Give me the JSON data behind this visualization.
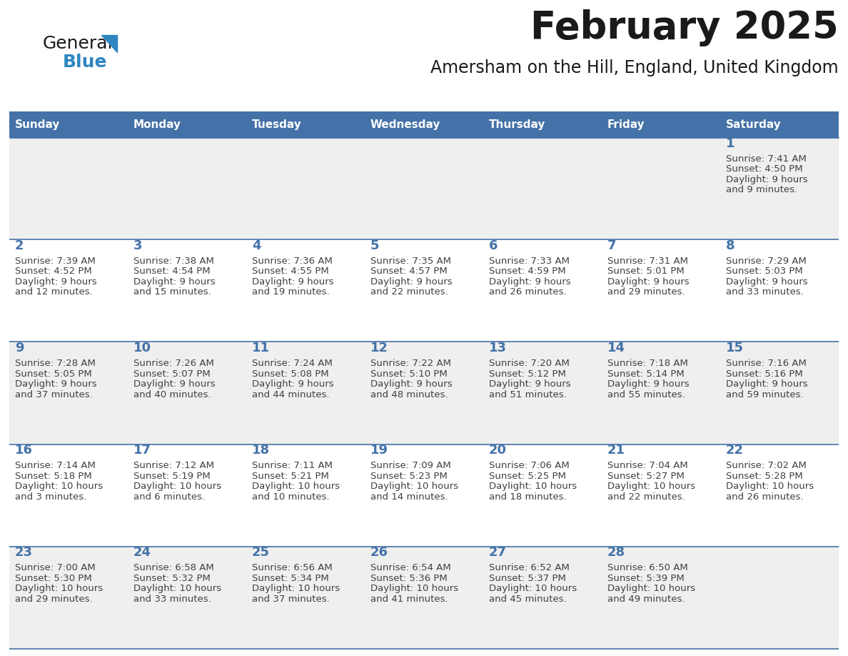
{
  "title": "February 2025",
  "subtitle": "Amersham on the Hill, England, United Kingdom",
  "days_of_week": [
    "Sunday",
    "Monday",
    "Tuesday",
    "Wednesday",
    "Thursday",
    "Friday",
    "Saturday"
  ],
  "header_bg": "#4472A8",
  "header_text": "#FFFFFF",
  "row_bg_even": "#EFEFEF",
  "row_bg_odd": "#FFFFFF",
  "day_number_color": "#4472A8",
  "text_color": "#404040",
  "line_color": "#4472A8",
  "cal_data": [
    {
      "day": 1,
      "col": 6,
      "row": 0,
      "sunrise": "7:41 AM",
      "sunset": "4:50 PM",
      "daylight_line1": "Daylight: 9 hours",
      "daylight_line2": "and 9 minutes."
    },
    {
      "day": 2,
      "col": 0,
      "row": 1,
      "sunrise": "7:39 AM",
      "sunset": "4:52 PM",
      "daylight_line1": "Daylight: 9 hours",
      "daylight_line2": "and 12 minutes."
    },
    {
      "day": 3,
      "col": 1,
      "row": 1,
      "sunrise": "7:38 AM",
      "sunset": "4:54 PM",
      "daylight_line1": "Daylight: 9 hours",
      "daylight_line2": "and 15 minutes."
    },
    {
      "day": 4,
      "col": 2,
      "row": 1,
      "sunrise": "7:36 AM",
      "sunset": "4:55 PM",
      "daylight_line1": "Daylight: 9 hours",
      "daylight_line2": "and 19 minutes."
    },
    {
      "day": 5,
      "col": 3,
      "row": 1,
      "sunrise": "7:35 AM",
      "sunset": "4:57 PM",
      "daylight_line1": "Daylight: 9 hours",
      "daylight_line2": "and 22 minutes."
    },
    {
      "day": 6,
      "col": 4,
      "row": 1,
      "sunrise": "7:33 AM",
      "sunset": "4:59 PM",
      "daylight_line1": "Daylight: 9 hours",
      "daylight_line2": "and 26 minutes."
    },
    {
      "day": 7,
      "col": 5,
      "row": 1,
      "sunrise": "7:31 AM",
      "sunset": "5:01 PM",
      "daylight_line1": "Daylight: 9 hours",
      "daylight_line2": "and 29 minutes."
    },
    {
      "day": 8,
      "col": 6,
      "row": 1,
      "sunrise": "7:29 AM",
      "sunset": "5:03 PM",
      "daylight_line1": "Daylight: 9 hours",
      "daylight_line2": "and 33 minutes."
    },
    {
      "day": 9,
      "col": 0,
      "row": 2,
      "sunrise": "7:28 AM",
      "sunset": "5:05 PM",
      "daylight_line1": "Daylight: 9 hours",
      "daylight_line2": "and 37 minutes."
    },
    {
      "day": 10,
      "col": 1,
      "row": 2,
      "sunrise": "7:26 AM",
      "sunset": "5:07 PM",
      "daylight_line1": "Daylight: 9 hours",
      "daylight_line2": "and 40 minutes."
    },
    {
      "day": 11,
      "col": 2,
      "row": 2,
      "sunrise": "7:24 AM",
      "sunset": "5:08 PM",
      "daylight_line1": "Daylight: 9 hours",
      "daylight_line2": "and 44 minutes."
    },
    {
      "day": 12,
      "col": 3,
      "row": 2,
      "sunrise": "7:22 AM",
      "sunset": "5:10 PM",
      "daylight_line1": "Daylight: 9 hours",
      "daylight_line2": "and 48 minutes."
    },
    {
      "day": 13,
      "col": 4,
      "row": 2,
      "sunrise": "7:20 AM",
      "sunset": "5:12 PM",
      "daylight_line1": "Daylight: 9 hours",
      "daylight_line2": "and 51 minutes."
    },
    {
      "day": 14,
      "col": 5,
      "row": 2,
      "sunrise": "7:18 AM",
      "sunset": "5:14 PM",
      "daylight_line1": "Daylight: 9 hours",
      "daylight_line2": "and 55 minutes."
    },
    {
      "day": 15,
      "col": 6,
      "row": 2,
      "sunrise": "7:16 AM",
      "sunset": "5:16 PM",
      "daylight_line1": "Daylight: 9 hours",
      "daylight_line2": "and 59 minutes."
    },
    {
      "day": 16,
      "col": 0,
      "row": 3,
      "sunrise": "7:14 AM",
      "sunset": "5:18 PM",
      "daylight_line1": "Daylight: 10 hours",
      "daylight_line2": "and 3 minutes."
    },
    {
      "day": 17,
      "col": 1,
      "row": 3,
      "sunrise": "7:12 AM",
      "sunset": "5:19 PM",
      "daylight_line1": "Daylight: 10 hours",
      "daylight_line2": "and 6 minutes."
    },
    {
      "day": 18,
      "col": 2,
      "row": 3,
      "sunrise": "7:11 AM",
      "sunset": "5:21 PM",
      "daylight_line1": "Daylight: 10 hours",
      "daylight_line2": "and 10 minutes."
    },
    {
      "day": 19,
      "col": 3,
      "row": 3,
      "sunrise": "7:09 AM",
      "sunset": "5:23 PM",
      "daylight_line1": "Daylight: 10 hours",
      "daylight_line2": "and 14 minutes."
    },
    {
      "day": 20,
      "col": 4,
      "row": 3,
      "sunrise": "7:06 AM",
      "sunset": "5:25 PM",
      "daylight_line1": "Daylight: 10 hours",
      "daylight_line2": "and 18 minutes."
    },
    {
      "day": 21,
      "col": 5,
      "row": 3,
      "sunrise": "7:04 AM",
      "sunset": "5:27 PM",
      "daylight_line1": "Daylight: 10 hours",
      "daylight_line2": "and 22 minutes."
    },
    {
      "day": 22,
      "col": 6,
      "row": 3,
      "sunrise": "7:02 AM",
      "sunset": "5:28 PM",
      "daylight_line1": "Daylight: 10 hours",
      "daylight_line2": "and 26 minutes."
    },
    {
      "day": 23,
      "col": 0,
      "row": 4,
      "sunrise": "7:00 AM",
      "sunset": "5:30 PM",
      "daylight_line1": "Daylight: 10 hours",
      "daylight_line2": "and 29 minutes."
    },
    {
      "day": 24,
      "col": 1,
      "row": 4,
      "sunrise": "6:58 AM",
      "sunset": "5:32 PM",
      "daylight_line1": "Daylight: 10 hours",
      "daylight_line2": "and 33 minutes."
    },
    {
      "day": 25,
      "col": 2,
      "row": 4,
      "sunrise": "6:56 AM",
      "sunset": "5:34 PM",
      "daylight_line1": "Daylight: 10 hours",
      "daylight_line2": "and 37 minutes."
    },
    {
      "day": 26,
      "col": 3,
      "row": 4,
      "sunrise": "6:54 AM",
      "sunset": "5:36 PM",
      "daylight_line1": "Daylight: 10 hours",
      "daylight_line2": "and 41 minutes."
    },
    {
      "day": 27,
      "col": 4,
      "row": 4,
      "sunrise": "6:52 AM",
      "sunset": "5:37 PM",
      "daylight_line1": "Daylight: 10 hours",
      "daylight_line2": "and 45 minutes."
    },
    {
      "day": 28,
      "col": 5,
      "row": 4,
      "sunrise": "6:50 AM",
      "sunset": "5:39 PM",
      "daylight_line1": "Daylight: 10 hours",
      "daylight_line2": "and 49 minutes."
    }
  ],
  "num_rows": 5,
  "num_cols": 7
}
